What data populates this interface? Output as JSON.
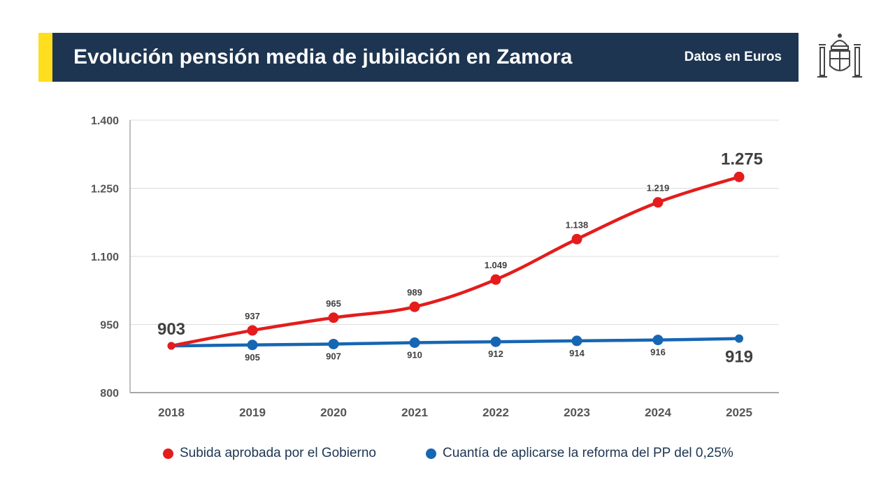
{
  "header": {
    "title": "Evolución pensión media de jubilación en Zamora",
    "subtitle": "Datos en Euros"
  },
  "colors": {
    "banner": "#1d3551",
    "accent": "#ffdd1f",
    "series_red": "#e41c1c",
    "series_blue": "#1666b3"
  },
  "chart_data": {
    "type": "line",
    "categories": [
      "2018",
      "2019",
      "2020",
      "2021",
      "2022",
      "2023",
      "2024",
      "2025"
    ],
    "y_ticks": [
      800,
      950,
      1100,
      1250,
      1400
    ],
    "y_tick_labels": [
      "800",
      "950",
      "1.100",
      "1.250",
      "1.400"
    ],
    "ylim": [
      800,
      1400
    ],
    "grid": true,
    "legend_position": "bottom",
    "series": [
      {
        "name": "Subida aprobada por el Gobierno",
        "values": [
          903,
          937,
          965,
          989,
          1049,
          1138,
          1219,
          1275
        ],
        "labels": [
          "903",
          "937",
          "965",
          "989",
          "1.049",
          "1.138",
          "1.219",
          "1.275"
        ]
      },
      {
        "name": "Cuantía de aplicarse la reforma del PP del 0,25%",
        "values": [
          903,
          905,
          907,
          910,
          912,
          914,
          916,
          919
        ],
        "labels": [
          "",
          "905",
          "907",
          "910",
          "912",
          "914",
          "916",
          "919"
        ]
      }
    ]
  }
}
